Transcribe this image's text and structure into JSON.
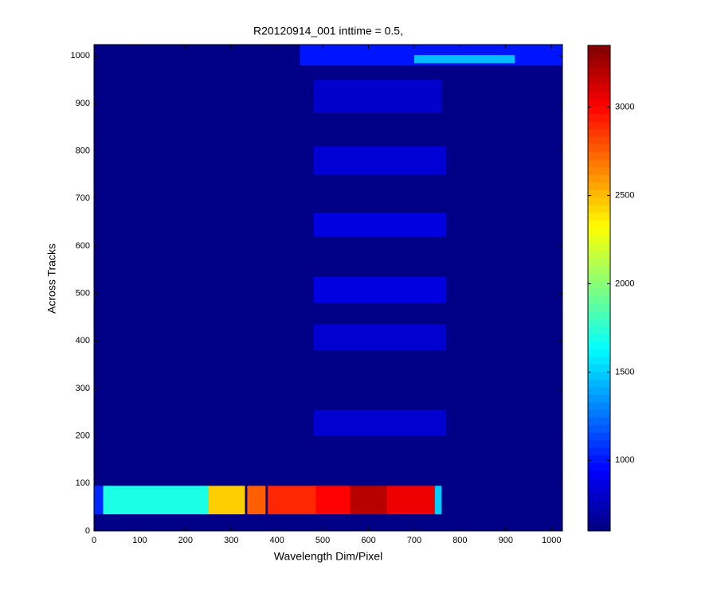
{
  "chart_data": {
    "type": "heatmap",
    "title": "R20120914_001 inttime = 0.5,",
    "x_label": "Wavelength Dim/Pixel",
    "y_label": "Across Tracks",
    "xlim": [
      0,
      1024
    ],
    "ylim": [
      0,
      1024
    ],
    "xticks": [
      0,
      100,
      200,
      300,
      400,
      500,
      600,
      700,
      800,
      900,
      1000
    ],
    "yticks": [
      0,
      100,
      200,
      300,
      400,
      500,
      600,
      700,
      800,
      900,
      1000
    ],
    "colormap": "jet",
    "clim": [
      600,
      3350
    ],
    "colorbar_ticks": [
      1000,
      1500,
      2000,
      2500,
      3000
    ],
    "regions": [
      {
        "x": [
          0,
          1024
        ],
        "y": [
          0,
          1024
        ],
        "value": 620
      },
      {
        "x": [
          450,
          1024
        ],
        "y": [
          980,
          1024
        ],
        "value": 1000
      },
      {
        "x": [
          700,
          920
        ],
        "y": [
          985,
          1002
        ],
        "value": 1450
      },
      {
        "x": [
          480,
          760
        ],
        "y": [
          880,
          950
        ],
        "value": 800
      },
      {
        "x": [
          480,
          770
        ],
        "y": [
          750,
          810
        ],
        "value": 830
      },
      {
        "x": [
          480,
          770
        ],
        "y": [
          620,
          670
        ],
        "value": 860
      },
      {
        "x": [
          480,
          770
        ],
        "y": [
          480,
          535
        ],
        "value": 860
      },
      {
        "x": [
          480,
          770
        ],
        "y": [
          380,
          435
        ],
        "value": 820
      },
      {
        "x": [
          480,
          770
        ],
        "y": [
          200,
          255
        ],
        "value": 820
      },
      {
        "x": [
          0,
          20
        ],
        "y": [
          35,
          95
        ],
        "value": 1050
      },
      {
        "x": [
          20,
          250
        ],
        "y": [
          35,
          95
        ],
        "value": 1700
      },
      {
        "x": [
          250,
          330
        ],
        "y": [
          35,
          95
        ],
        "value": 2450
      },
      {
        "x": [
          335,
          375
        ],
        "y": [
          35,
          95
        ],
        "value": 2750
      },
      {
        "x": [
          380,
          485
        ],
        "y": [
          35,
          95
        ],
        "value": 2900
      },
      {
        "x": [
          485,
          560
        ],
        "y": [
          35,
          95
        ],
        "value": 3000
      },
      {
        "x": [
          560,
          640
        ],
        "y": [
          35,
          95
        ],
        "value": 3200
      },
      {
        "x": [
          640,
          745
        ],
        "y": [
          35,
          95
        ],
        "value": 3050
      },
      {
        "x": [
          745,
          760
        ],
        "y": [
          35,
          95
        ],
        "value": 1500
      }
    ]
  }
}
